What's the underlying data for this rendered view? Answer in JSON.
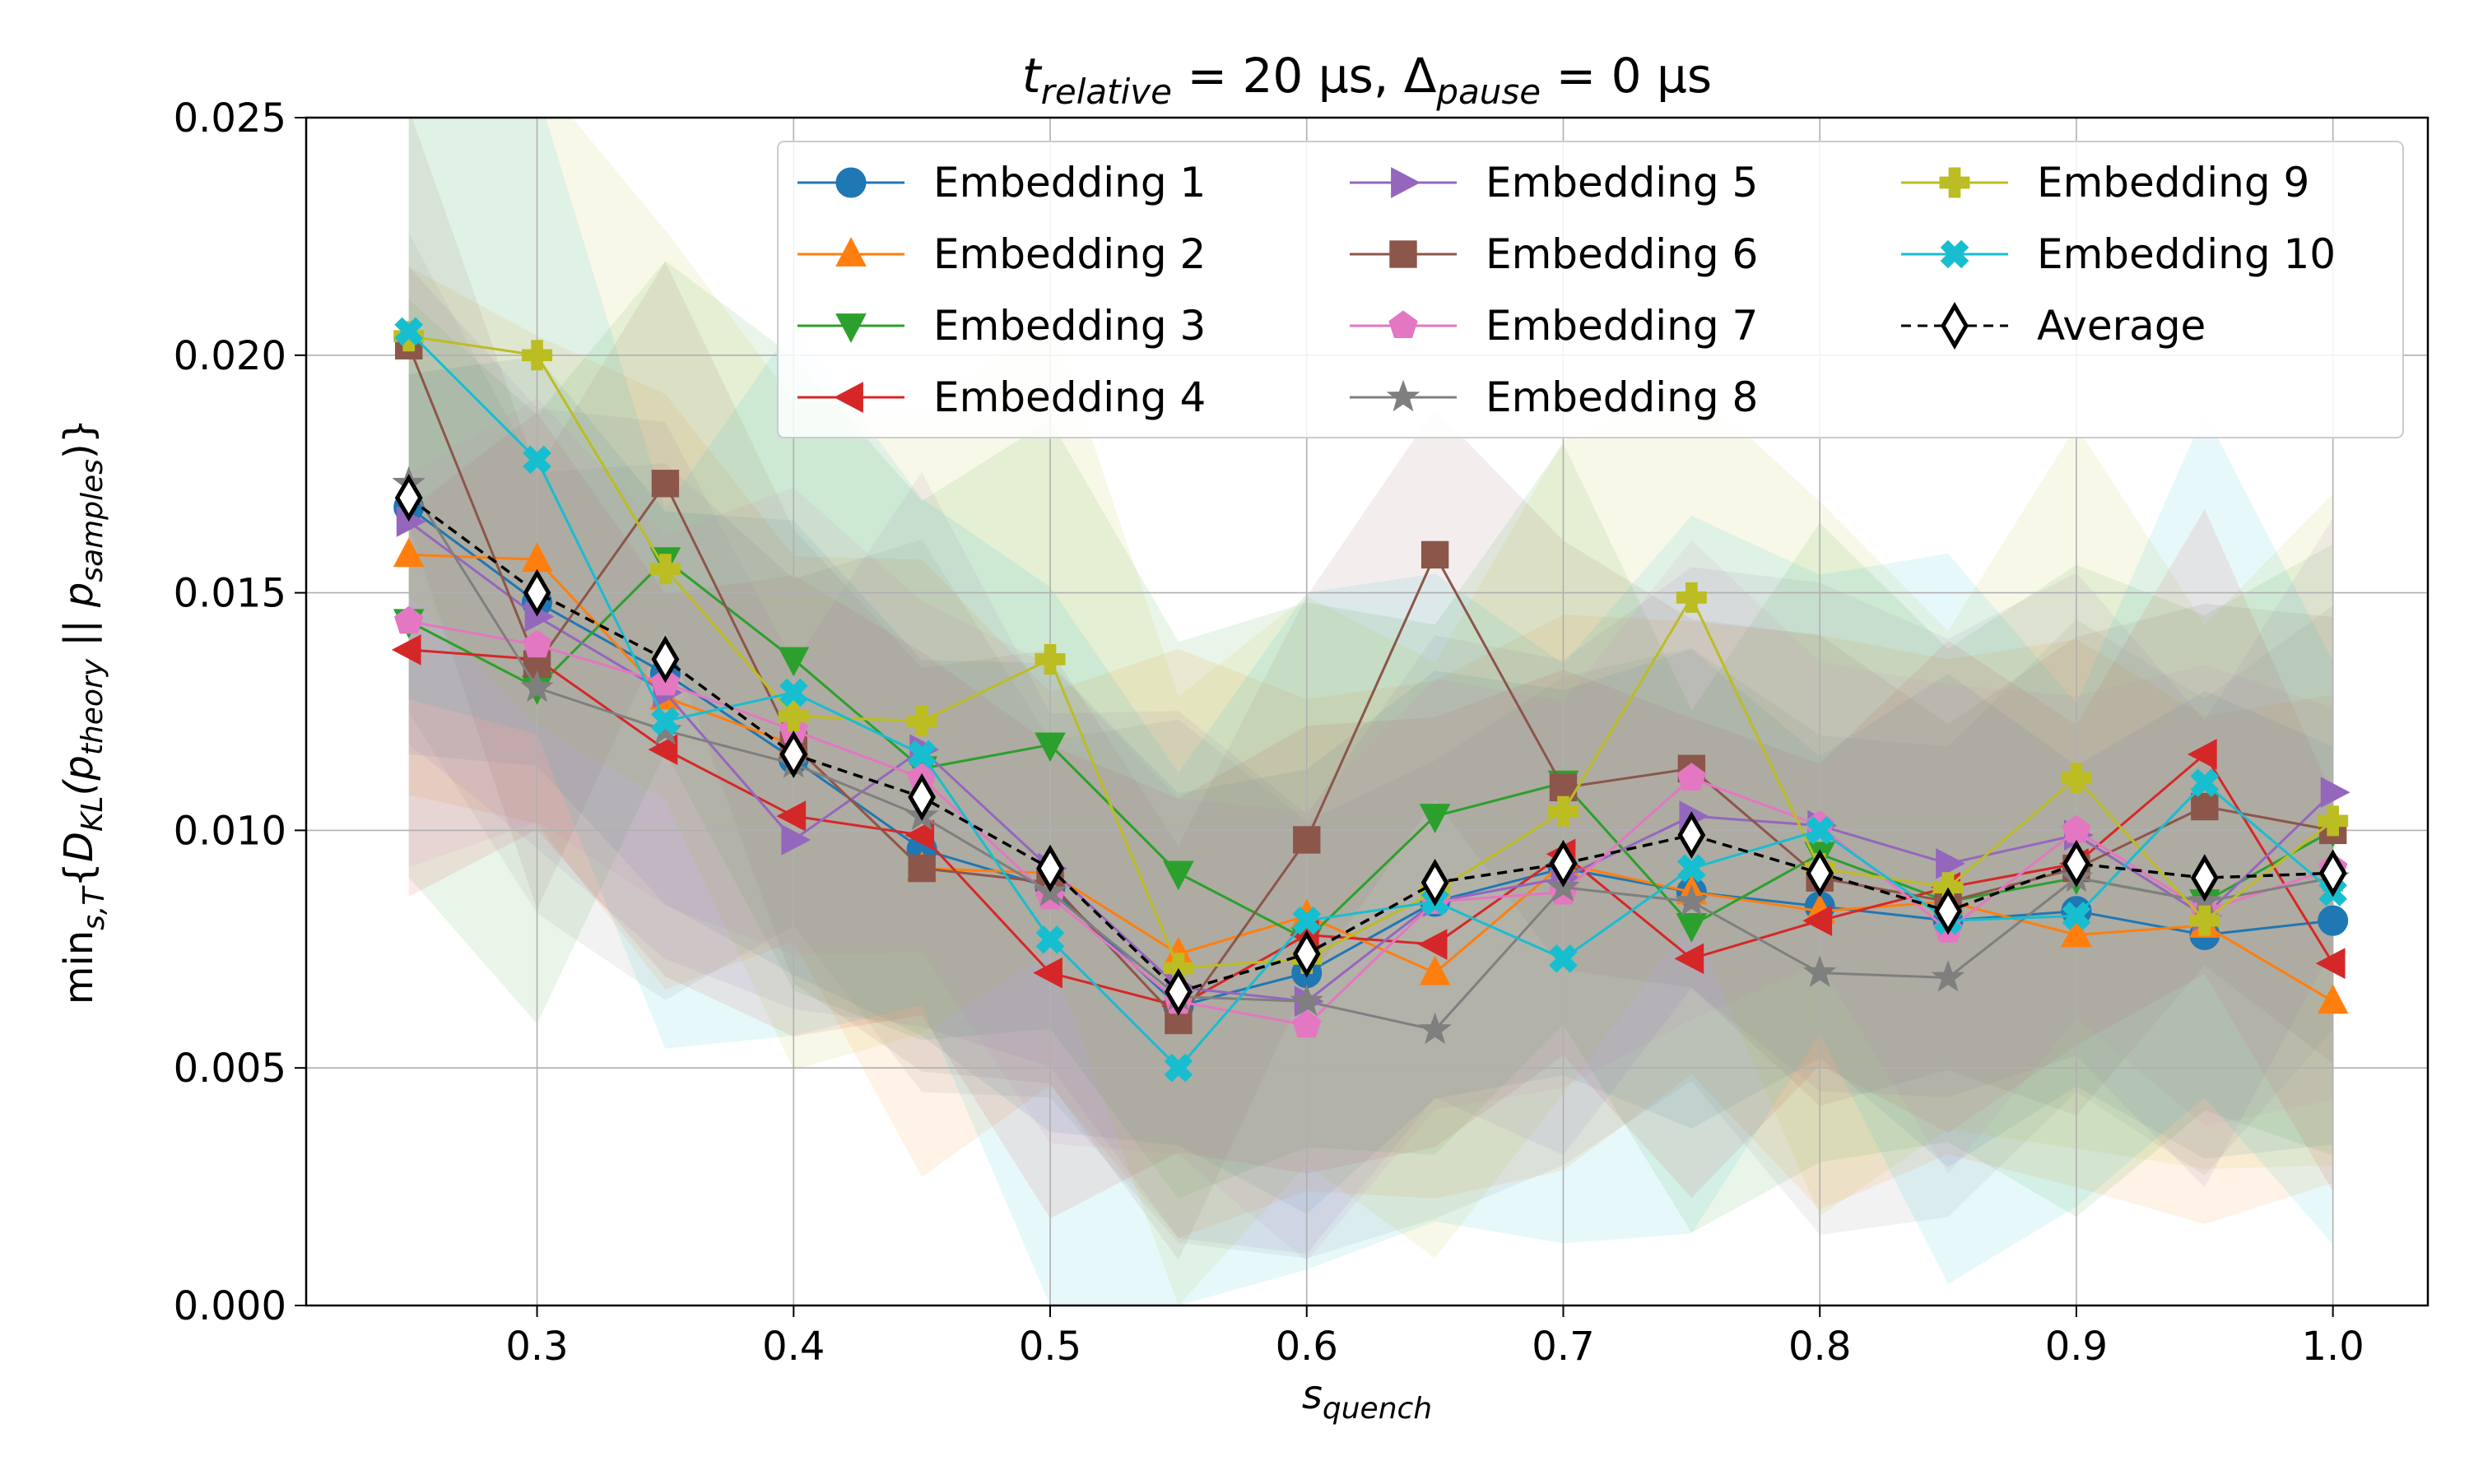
{
  "chart_data": {
    "type": "line",
    "title_main": "t",
    "title_main_sub": "relative",
    "title_eq1": " = 20 μs, Δ",
    "title_pause_sub": "pause",
    "title_eq2": " = 0 μs",
    "xlabel_main": "s",
    "xlabel_sub": "quench",
    "ylabel_min": "min",
    "ylabel_min_sub": "s,T",
    "ylabel_open": "{",
    "ylabel_D": "D",
    "ylabel_D_sub": "KL",
    "ylabel_p1": "(p",
    "ylabel_p1_sub": "theory",
    "ylabel_sep": " || p",
    "ylabel_p2_sub": "samples",
    "ylabel_close": ")}",
    "xlim": [
      0.21,
      1.037
    ],
    "ylim": [
      0,
      0.025
    ],
    "xticks": [
      0.3,
      0.4,
      0.5,
      0.6,
      0.7,
      0.8,
      0.9,
      1.0
    ],
    "xtick_labels": [
      "0.3",
      "0.4",
      "0.5",
      "0.6",
      "0.7",
      "0.8",
      "0.9",
      "1.0"
    ],
    "yticks": [
      0,
      0.005,
      0.01,
      0.015,
      0.02,
      0.025
    ],
    "ytick_labels": [
      "0.000",
      "0.005",
      "0.010",
      "0.015",
      "0.020",
      "0.025"
    ],
    "grid": true,
    "legend_position": "top-right",
    "x": [
      0.25,
      0.3,
      0.35,
      0.4,
      0.45,
      0.5,
      0.55,
      0.6,
      0.65,
      0.7,
      0.75,
      0.8,
      0.85,
      0.9,
      0.95,
      1.0
    ],
    "series": [
      {
        "name": "Embedding 1",
        "color": "#1f77b4",
        "marker": "circle",
        "dashed": false,
        "spread": 0.004,
        "values": [
          0.0168,
          0.0148,
          0.0133,
          0.0115,
          0.0096,
          0.0088,
          0.0063,
          0.007,
          0.0085,
          0.0092,
          0.0087,
          0.0084,
          0.0081,
          0.0083,
          0.0078,
          0.0081
        ]
      },
      {
        "name": "Embedding 2",
        "color": "#ff7f0e",
        "marker": "triangle-up",
        "dashed": false,
        "spread": 0.005,
        "values": [
          0.0158,
          0.0157,
          0.0128,
          0.0118,
          0.0092,
          0.0091,
          0.0074,
          0.0082,
          0.007,
          0.0093,
          0.0087,
          0.0083,
          0.0085,
          0.0078,
          0.008,
          0.0064
        ]
      },
      {
        "name": "Embedding 3",
        "color": "#2ca02c",
        "marker": "triangle-down",
        "dashed": false,
        "spread": 0.0055,
        "values": [
          0.0144,
          0.013,
          0.0157,
          0.0136,
          0.0113,
          0.0118,
          0.0091,
          0.0077,
          0.0103,
          0.011,
          0.008,
          0.0095,
          0.0085,
          0.009,
          0.0085,
          0.01
        ]
      },
      {
        "name": "Embedding 4",
        "color": "#d62728",
        "marker": "triangle-left",
        "dashed": false,
        "spread": 0.004,
        "values": [
          0.0138,
          0.0136,
          0.0117,
          0.0103,
          0.0099,
          0.007,
          0.0063,
          0.0078,
          0.0076,
          0.0095,
          0.0073,
          0.0081,
          0.0088,
          0.0093,
          0.0116,
          0.0072
        ]
      },
      {
        "name": "Embedding 5",
        "color": "#9467bd",
        "marker": "triangle-right",
        "dashed": false,
        "spread": 0.0045,
        "values": [
          0.0165,
          0.0145,
          0.0129,
          0.0098,
          0.0117,
          0.0092,
          0.0067,
          0.0064,
          0.0085,
          0.009,
          0.0103,
          0.0101,
          0.0093,
          0.0099,
          0.0082,
          0.0108
        ]
      },
      {
        "name": "Embedding 6",
        "color": "#8c564b",
        "marker": "square",
        "dashed": false,
        "spread": 0.004,
        "values": [
          0.0202,
          0.0135,
          0.0173,
          0.0118,
          0.0092,
          0.0089,
          0.006,
          0.0098,
          0.0158,
          0.0109,
          0.0113,
          0.009,
          0.0085,
          0.0092,
          0.0105,
          0.01
        ]
      },
      {
        "name": "Embedding 7",
        "color": "#e377c2",
        "marker": "pentagon",
        "dashed": false,
        "spread": 0.004,
        "values": [
          0.0144,
          0.0139,
          0.0131,
          0.0121,
          0.0111,
          0.0086,
          0.0064,
          0.0059,
          0.0085,
          0.0087,
          0.0111,
          0.0101,
          0.0079,
          0.01,
          0.0083,
          0.0092
        ]
      },
      {
        "name": "Embedding 8",
        "color": "#7f7f7f",
        "marker": "star",
        "dashed": false,
        "spread": 0.0045,
        "values": [
          0.0173,
          0.013,
          0.0121,
          0.0114,
          0.0103,
          0.0087,
          0.0065,
          0.0064,
          0.0058,
          0.0088,
          0.0085,
          0.007,
          0.0069,
          0.009,
          0.0085,
          0.009
        ]
      },
      {
        "name": "Embedding 9",
        "color": "#bcbd22",
        "marker": "plus",
        "dashed": false,
        "spread": 0.006,
        "values": [
          0.0204,
          0.02,
          0.0155,
          0.0124,
          0.0123,
          0.0136,
          0.0071,
          0.0073,
          0.0087,
          0.0104,
          0.0149,
          0.0092,
          0.0088,
          0.0111,
          0.0081,
          0.0102
        ]
      },
      {
        "name": "Embedding 10",
        "color": "#17becf",
        "marker": "x",
        "dashed": false,
        "spread": 0.006,
        "values": [
          0.0205,
          0.0178,
          0.0123,
          0.0129,
          0.0116,
          0.0077,
          0.005,
          0.0081,
          0.0085,
          0.0073,
          0.0092,
          0.01,
          0.0081,
          0.0082,
          0.011,
          0.0087
        ]
      },
      {
        "name": "Average",
        "color": "#000000",
        "marker": "diamond",
        "dashed": true,
        "spread": 0,
        "values": [
          0.017,
          0.015,
          0.0136,
          0.0116,
          0.0107,
          0.0092,
          0.0066,
          0.0074,
          0.0089,
          0.0093,
          0.0099,
          0.0091,
          0.0083,
          0.0093,
          0.009,
          0.0091
        ]
      }
    ]
  }
}
